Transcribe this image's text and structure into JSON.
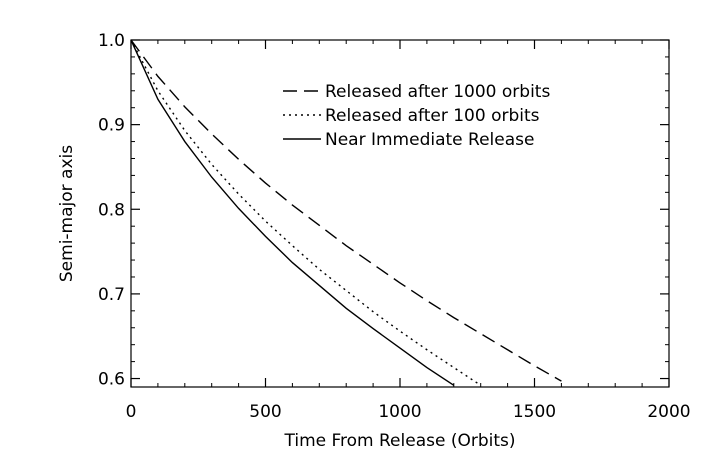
{
  "chart_data": {
    "type": "line",
    "title": "",
    "xlabel": "Time From Release (Orbits)",
    "ylabel": "Semi-major axis",
    "xlim": [
      0,
      2000
    ],
    "ylim": [
      0.59,
      1.0
    ],
    "xticks": [
      0,
      500,
      1000,
      1500,
      2000
    ],
    "yticks": [
      0.6,
      0.7,
      0.8,
      0.9,
      1.0
    ],
    "xtick_labels": [
      "0",
      "500",
      "1000",
      "1500",
      "2000"
    ],
    "ytick_labels": [
      "0.6",
      "0.7",
      "0.8",
      "0.9",
      "1.0"
    ],
    "grid": false,
    "legend_position": "top-right",
    "series": [
      {
        "name": "Released after 1000 orbits",
        "line_style": "dashed",
        "color": "#000000",
        "x": [
          0,
          100,
          200,
          300,
          400,
          500,
          600,
          700,
          800,
          900,
          1000,
          1100,
          1200,
          1300,
          1400,
          1500,
          1600
        ],
        "y": [
          1.0,
          0.957,
          0.921,
          0.889,
          0.859,
          0.831,
          0.805,
          0.781,
          0.757,
          0.735,
          0.713,
          0.692,
          0.672,
          0.653,
          0.634,
          0.615,
          0.597
        ]
      },
      {
        "name": "Released after 100 orbits",
        "line_style": "dotted",
        "color": "#000000",
        "x": [
          0,
          100,
          200,
          300,
          400,
          500,
          600,
          700,
          800,
          900,
          1000,
          1100,
          1200,
          1300
        ],
        "y": [
          1.0,
          0.94,
          0.893,
          0.853,
          0.818,
          0.786,
          0.757,
          0.729,
          0.704,
          0.679,
          0.656,
          0.634,
          0.613,
          0.592
        ]
      },
      {
        "name": "Near Immediate Release",
        "line_style": "solid",
        "color": "#000000",
        "x": [
          0,
          100,
          200,
          300,
          400,
          500,
          600,
          700,
          800,
          900,
          1000,
          1100,
          1200
        ],
        "y": [
          1.0,
          0.93,
          0.88,
          0.838,
          0.801,
          0.768,
          0.737,
          0.71,
          0.683,
          0.659,
          0.636,
          0.613,
          0.592
        ]
      }
    ]
  }
}
